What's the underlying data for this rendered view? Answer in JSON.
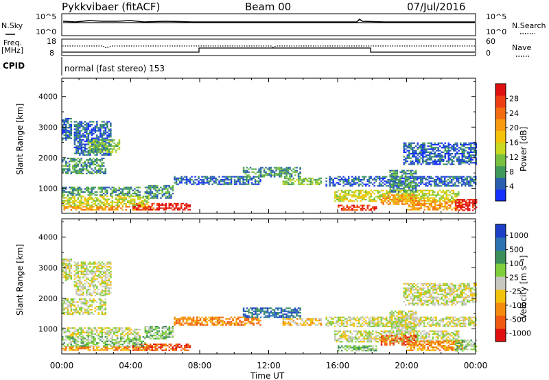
{
  "header": {
    "station": "Pykkvibaer (fitACF)",
    "beam": "Beam 00",
    "date": "07/Jul/2016"
  },
  "panels": {
    "nsky": {
      "left_label": "N.Sky",
      "left_ticks": [
        "10^5",
        "10^0"
      ],
      "right_label": "N.Search",
      "right_ticks": [
        "10^5",
        "10^0"
      ]
    },
    "freq": {
      "left_label_1": "Freq.",
      "left_label_2": "[MHz]",
      "left_ticks": [
        "18",
        "8"
      ],
      "right_label": "Nave",
      "right_ticks": [
        "60",
        "0"
      ]
    },
    "cpid": {
      "label": "CPID",
      "text": "normal (fast stereo) 153"
    }
  },
  "x_axis": {
    "label": "Time UT",
    "ticks": [
      "00:00",
      "04:00",
      "08:00",
      "12:00",
      "16:00",
      "20:00",
      "00:00"
    ]
  },
  "chart_data": [
    {
      "type": "heatmap",
      "title": "",
      "xlabel": "Time UT",
      "ylabel": "Slant Range [km]",
      "x_ticks": [
        "00:00",
        "04:00",
        "08:00",
        "12:00",
        "16:00",
        "20:00",
        "00:00"
      ],
      "y_ticks": [
        1000,
        2000,
        3000,
        4000
      ],
      "xlim_hours": [
        0,
        24
      ],
      "ylim_km": [
        180,
        4600
      ],
      "colorbar": {
        "label": "Power [dB]",
        "ticks": [
          "4",
          "8",
          "12",
          "16",
          "20",
          "24",
          "28"
        ],
        "colors": [
          "#1530ff",
          "#2a5fb0",
          "#3f9a5a",
          "#78c140",
          "#c8d81e",
          "#f5c20a",
          "#f89b0e",
          "#f36d10",
          "#ee3d12",
          "#e01010"
        ]
      },
      "regions": [
        {
          "t": [
            0.0,
            5.3
          ],
          "r": [
            300,
            420
          ],
          "level": 6
        },
        {
          "t": [
            4.1,
            7.4
          ],
          "r": [
            300,
            520
          ],
          "level": 9
        },
        {
          "t": [
            0.0,
            5.0
          ],
          "r": [
            430,
            760
          ],
          "level": 4
        },
        {
          "t": [
            0.0,
            4.5
          ],
          "r": [
            760,
            1050
          ],
          "level": 2
        },
        {
          "t": [
            0.0,
            2.5
          ],
          "r": [
            1500,
            2000
          ],
          "level": 2
        },
        {
          "t": [
            0.0,
            0.5
          ],
          "r": [
            2600,
            3300
          ],
          "level": 1
        },
        {
          "t": [
            0.7,
            2.8
          ],
          "r": [
            2100,
            3200
          ],
          "level": 1
        },
        {
          "t": [
            1.5,
            3.3
          ],
          "r": [
            2200,
            2600
          ],
          "level": 3
        },
        {
          "t": [
            4.8,
            6.4
          ],
          "r": [
            700,
            1100
          ],
          "level": 2
        },
        {
          "t": [
            6.5,
            11.5
          ],
          "r": [
            1150,
            1400
          ],
          "level": 1
        },
        {
          "t": [
            10.5,
            13.8
          ],
          "r": [
            1400,
            1700
          ],
          "level": 2
        },
        {
          "t": [
            12.8,
            15.0
          ],
          "r": [
            1150,
            1350
          ],
          "level": 3
        },
        {
          "t": [
            15.3,
            24.0
          ],
          "r": [
            1100,
            1400
          ],
          "level": 1
        },
        {
          "t": [
            15.8,
            23.0
          ],
          "r": [
            600,
            950
          ],
          "level": 4
        },
        {
          "t": [
            16.0,
            18.2
          ],
          "r": [
            300,
            460
          ],
          "level": 8
        },
        {
          "t": [
            18.5,
            20.5
          ],
          "r": [
            500,
            800
          ],
          "level": 6
        },
        {
          "t": [
            20.0,
            23.2
          ],
          "r": [
            300,
            620
          ],
          "level": 6
        },
        {
          "t": [
            22.8,
            24.0
          ],
          "r": [
            300,
            650
          ],
          "level": 9
        },
        {
          "t": [
            19.8,
            24.0
          ],
          "r": [
            1800,
            2500
          ],
          "level": 1
        },
        {
          "t": [
            19.0,
            20.5
          ],
          "r": [
            900,
            1600
          ],
          "level": 2
        }
      ]
    },
    {
      "type": "heatmap",
      "title": "",
      "xlabel": "Time UT",
      "ylabel": "Slant Range [km]",
      "x_ticks": [
        "00:00",
        "04:00",
        "08:00",
        "12:00",
        "16:00",
        "20:00",
        "00:00"
      ],
      "y_ticks": [
        1000,
        2000,
        3000,
        4000
      ],
      "xlim_hours": [
        0,
        24
      ],
      "ylim_km": [
        180,
        4600
      ],
      "colorbar": {
        "label": "Velocity [m s⁻¹]",
        "ticks": [
          "1000",
          "500",
          "100",
          "25",
          "-25",
          "-100",
          "-500",
          "-1000"
        ],
        "colors": [
          "#1d3fc8",
          "#2a72b0",
          "#3a8f5a",
          "#7fcf3a",
          "#c8c8c0",
          "#f3c20a",
          "#f48a0e",
          "#ef5a10",
          "#e01010"
        ]
      },
      "regions": [
        {
          "t": [
            0.0,
            5.3
          ],
          "r": [
            300,
            430
          ],
          "level": 6
        },
        {
          "t": [
            4.1,
            7.4
          ],
          "r": [
            300,
            520
          ],
          "level": 7
        },
        {
          "t": [
            0.0,
            4.8
          ],
          "r": [
            430,
            760
          ],
          "level": 3
        },
        {
          "t": [
            0.0,
            4.5
          ],
          "r": [
            760,
            1050
          ],
          "level": 4
        },
        {
          "t": [
            0.0,
            2.5
          ],
          "r": [
            1500,
            2000
          ],
          "level": 4
        },
        {
          "t": [
            0.0,
            0.5
          ],
          "r": [
            2600,
            3300
          ],
          "level": 4
        },
        {
          "t": [
            0.7,
            2.8
          ],
          "r": [
            2100,
            3200
          ],
          "level": 4
        },
        {
          "t": [
            4.8,
            6.4
          ],
          "r": [
            700,
            1100
          ],
          "level": 3
        },
        {
          "t": [
            6.5,
            11.5
          ],
          "r": [
            1150,
            1400
          ],
          "level": 6
        },
        {
          "t": [
            10.5,
            13.8
          ],
          "r": [
            1400,
            1700
          ],
          "level": 1
        },
        {
          "t": [
            12.8,
            15.0
          ],
          "r": [
            1150,
            1350
          ],
          "level": 5
        },
        {
          "t": [
            15.3,
            24.0
          ],
          "r": [
            1100,
            1400
          ],
          "level": 4
        },
        {
          "t": [
            15.8,
            23.0
          ],
          "r": [
            600,
            950
          ],
          "level": 4
        },
        {
          "t": [
            16.0,
            18.2
          ],
          "r": [
            300,
            460
          ],
          "level": 3
        },
        {
          "t": [
            18.5,
            20.5
          ],
          "r": [
            500,
            800
          ],
          "level": 7
        },
        {
          "t": [
            20.0,
            23.2
          ],
          "r": [
            300,
            620
          ],
          "level": 6
        },
        {
          "t": [
            22.8,
            24.0
          ],
          "r": [
            300,
            650
          ],
          "level": 3
        },
        {
          "t": [
            19.8,
            24.0
          ],
          "r": [
            1800,
            2500
          ],
          "level": 4
        },
        {
          "t": [
            19.0,
            20.5
          ],
          "r": [
            900,
            1600
          ],
          "level": 4
        }
      ]
    }
  ]
}
